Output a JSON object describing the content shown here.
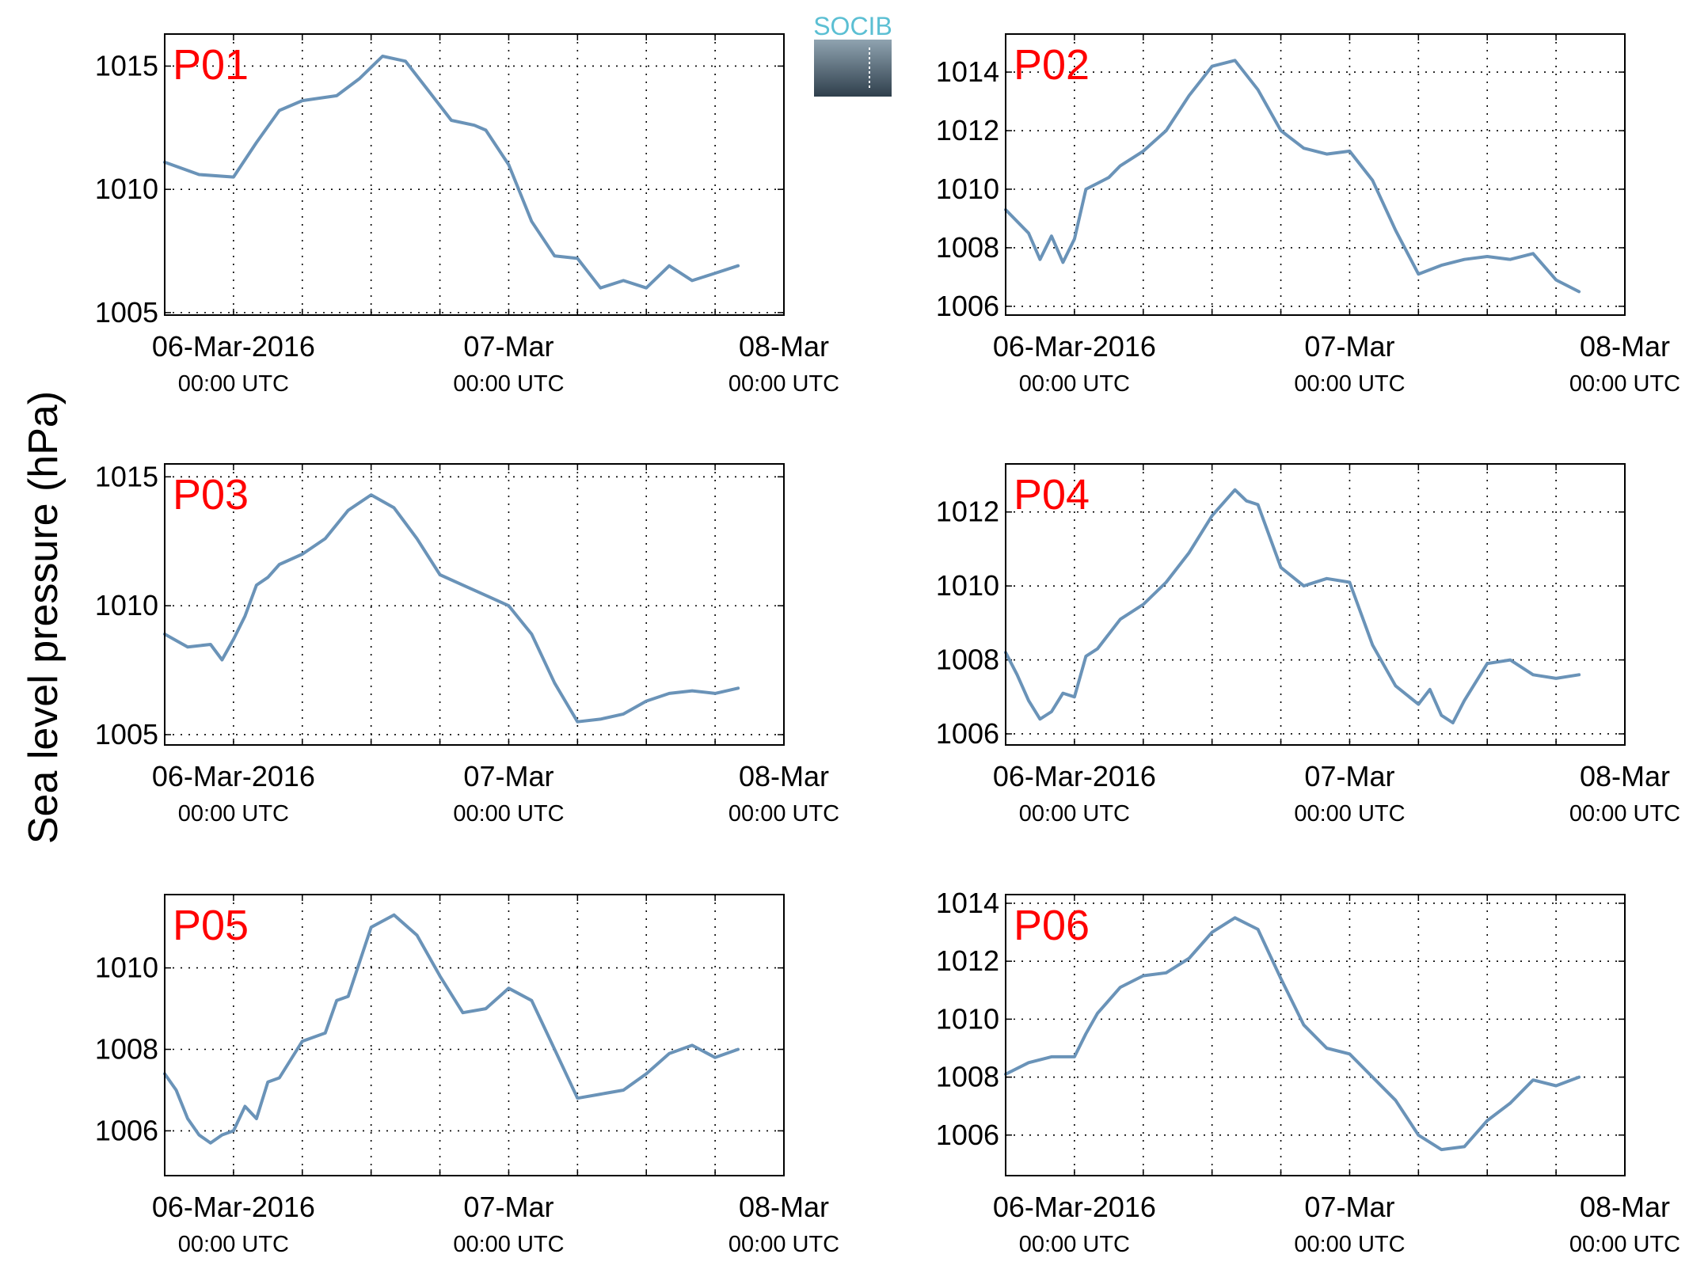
{
  "figure": {
    "ylabel": "Sea level pressure (hPa)",
    "logo_text": "SOCIB"
  },
  "colors": {
    "line": "#6a93b8",
    "panel_label": "#ff0000",
    "logo_top": "#5bbfd3",
    "logo_bottom": "#2f3f4c",
    "grid": "#000000"
  },
  "chart_data": [
    {
      "type": "line",
      "panel": "P01",
      "x_range": [
        "2016-03-06T00:00Z",
        "2016-03-08T00:00Z"
      ],
      "ylim": [
        1004.9,
        1016.3
      ],
      "yticks": [
        1005,
        1010,
        1015
      ],
      "xticks": [
        {
          "main": "06-Mar-2016",
          "sub": "00:00 UTC"
        },
        {
          "main": "07-Mar",
          "sub": "00:00 UTC"
        },
        {
          "main": "08-Mar",
          "sub": "00:00 UTC"
        }
      ],
      "grid": true,
      "series": [
        {
          "x_hours": [
            -6,
            -3,
            0,
            2,
            4,
            6,
            9,
            11,
            13,
            15,
            17,
            19,
            21,
            22,
            24,
            26,
            28,
            30,
            32,
            34,
            36,
            38,
            40,
            42,
            44
          ],
          "y": [
            1011.1,
            1010.6,
            1010.5,
            1011.9,
            1013.2,
            1013.6,
            1013.8,
            1014.5,
            1015.4,
            1015.2,
            1014.0,
            1012.8,
            1012.6,
            1012.4,
            1011.0,
            1008.7,
            1007.3,
            1007.2,
            1006.0,
            1006.3,
            1006.0,
            1006.9,
            1006.3,
            1006.6,
            1006.9
          ]
        }
      ]
    },
    {
      "type": "line",
      "panel": "P02",
      "x_range": [
        "2016-03-06T00:00Z",
        "2016-03-08T00:00Z"
      ],
      "ylim": [
        1005.7,
        1015.3
      ],
      "yticks": [
        1006,
        1008,
        1010,
        1012,
        1014
      ],
      "xticks": [
        {
          "main": "06-Mar-2016",
          "sub": "00:00 UTC"
        },
        {
          "main": "07-Mar",
          "sub": "00:00 UTC"
        },
        {
          "main": "08-Mar",
          "sub": "00:00 UTC"
        }
      ],
      "grid": true,
      "series": [
        {
          "x_hours": [
            -6,
            -4,
            -3,
            -2,
            -1,
            0,
            1,
            2,
            3,
            4,
            6,
            8,
            10,
            12,
            14,
            16,
            18,
            20,
            22,
            24,
            26,
            28,
            30,
            32,
            34,
            36,
            38,
            40,
            42,
            44
          ],
          "y": [
            1009.3,
            1008.5,
            1007.6,
            1008.4,
            1007.5,
            1008.3,
            1010.0,
            1010.2,
            1010.4,
            1010.8,
            1011.3,
            1012.0,
            1013.2,
            1014.2,
            1014.4,
            1013.4,
            1012.0,
            1011.4,
            1011.2,
            1011.3,
            1010.3,
            1008.6,
            1007.1,
            1007.4,
            1007.6,
            1007.7,
            1007.6,
            1007.8,
            1006.9,
            1006.5
          ]
        }
      ]
    },
    {
      "type": "line",
      "panel": "P03",
      "x_range": [
        "2016-03-06T00:00Z",
        "2016-03-08T00:00Z"
      ],
      "ylim": [
        1004.6,
        1015.5
      ],
      "yticks": [
        1005,
        1010,
        1015
      ],
      "xticks": [
        {
          "main": "06-Mar-2016",
          "sub": "00:00 UTC"
        },
        {
          "main": "07-Mar",
          "sub": "00:00 UTC"
        },
        {
          "main": "08-Mar",
          "sub": "00:00 UTC"
        }
      ],
      "grid": true,
      "series": [
        {
          "x_hours": [
            -6,
            -4,
            -2,
            -1,
            0,
            1,
            2,
            3,
            4,
            6,
            8,
            10,
            12,
            14,
            16,
            18,
            20,
            22,
            24,
            26,
            28,
            30,
            32,
            34,
            36,
            38,
            40,
            42,
            44
          ],
          "y": [
            1008.9,
            1008.4,
            1008.5,
            1007.9,
            1008.7,
            1009.6,
            1010.8,
            1011.1,
            1011.6,
            1012.0,
            1012.6,
            1013.7,
            1014.3,
            1013.8,
            1012.6,
            1011.2,
            1010.8,
            1010.4,
            1010.0,
            1008.9,
            1007.0,
            1005.5,
            1005.6,
            1005.8,
            1006.3,
            1006.6,
            1006.7,
            1006.6,
            1006.8
          ]
        }
      ]
    },
    {
      "type": "line",
      "panel": "P04",
      "x_range": [
        "2016-03-06T00:00Z",
        "2016-03-08T00:00Z"
      ],
      "ylim": [
        1005.7,
        1013.3
      ],
      "yticks": [
        1006,
        1008,
        1010,
        1012
      ],
      "xticks": [
        {
          "main": "06-Mar-2016",
          "sub": "00:00 UTC"
        },
        {
          "main": "07-Mar",
          "sub": "00:00 UTC"
        },
        {
          "main": "08-Mar",
          "sub": "00:00 UTC"
        }
      ],
      "grid": true,
      "series": [
        {
          "x_hours": [
            -6,
            -5,
            -4,
            -3,
            -2,
            -1,
            0,
            1,
            2,
            4,
            6,
            8,
            10,
            12,
            14,
            15,
            16,
            18,
            20,
            22,
            24,
            26,
            28,
            30,
            31,
            32,
            33,
            34,
            36,
            38,
            40,
            42,
            44
          ],
          "y": [
            1008.2,
            1007.6,
            1006.9,
            1006.4,
            1006.6,
            1007.1,
            1007.0,
            1008.1,
            1008.3,
            1009.1,
            1009.5,
            1010.1,
            1010.9,
            1011.9,
            1012.6,
            1012.3,
            1012.2,
            1010.5,
            1010.0,
            1010.2,
            1010.1,
            1008.4,
            1007.3,
            1006.8,
            1007.2,
            1006.5,
            1006.3,
            1006.9,
            1007.9,
            1008.0,
            1007.6,
            1007.5,
            1007.6
          ]
        }
      ]
    },
    {
      "type": "line",
      "panel": "P05",
      "x_range": [
        "2016-03-06T00:00Z",
        "2016-03-08T00:00Z"
      ],
      "ylim": [
        1004.9,
        1011.8
      ],
      "yticks": [
        1006,
        1008,
        1010
      ],
      "xticks": [
        {
          "main": "06-Mar-2016",
          "sub": "00:00 UTC"
        },
        {
          "main": "07-Mar",
          "sub": "00:00 UTC"
        },
        {
          "main": "08-Mar",
          "sub": "00:00 UTC"
        }
      ],
      "grid": true,
      "series": [
        {
          "x_hours": [
            -6,
            -5,
            -4,
            -3,
            -2,
            -1,
            0,
            1,
            2,
            3,
            4,
            6,
            8,
            9,
            10,
            12,
            14,
            16,
            18,
            20,
            22,
            24,
            26,
            28,
            30,
            32,
            34,
            36,
            38,
            40,
            42,
            44
          ],
          "y": [
            1007.4,
            1007.0,
            1006.3,
            1005.9,
            1005.7,
            1005.9,
            1006.0,
            1006.6,
            1006.3,
            1007.2,
            1007.3,
            1008.2,
            1008.4,
            1009.2,
            1009.3,
            1011.0,
            1011.3,
            1010.8,
            1009.8,
            1008.9,
            1009.0,
            1009.5,
            1009.2,
            1008.0,
            1006.8,
            1006.9,
            1007.0,
            1007.4,
            1007.9,
            1008.1,
            1007.8,
            1008.0
          ]
        }
      ]
    },
    {
      "type": "line",
      "panel": "P06",
      "x_range": [
        "2016-03-06T00:00Z",
        "2016-03-08T00:00Z"
      ],
      "ylim": [
        1004.6,
        1014.3
      ],
      "yticks": [
        1006,
        1008,
        1010,
        1012,
        1014
      ],
      "xticks": [
        {
          "main": "06-Mar-2016",
          "sub": "00:00 UTC"
        },
        {
          "main": "07-Mar",
          "sub": "00:00 UTC"
        },
        {
          "main": "08-Mar",
          "sub": "00:00 UTC"
        }
      ],
      "grid": true,
      "series": [
        {
          "x_hours": [
            -6,
            -4,
            -2,
            0,
            1,
            2,
            4,
            6,
            8,
            10,
            12,
            14,
            15,
            16,
            18,
            20,
            22,
            24,
            26,
            28,
            30,
            32,
            34,
            36,
            38,
            40,
            42,
            44
          ],
          "y": [
            1008.1,
            1008.5,
            1008.7,
            1008.7,
            1009.5,
            1010.2,
            1011.1,
            1011.5,
            1011.6,
            1012.1,
            1013.0,
            1013.5,
            1013.3,
            1013.1,
            1011.4,
            1009.8,
            1009.0,
            1008.8,
            1008.0,
            1007.2,
            1006.0,
            1005.5,
            1005.6,
            1006.5,
            1007.1,
            1007.9,
            1007.7,
            1008.0
          ]
        }
      ]
    }
  ]
}
